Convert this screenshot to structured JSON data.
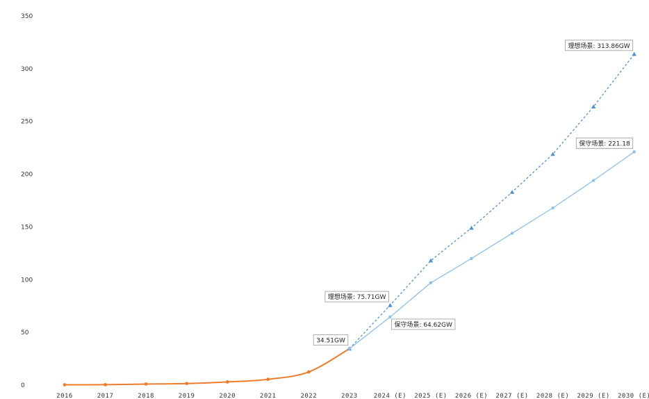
{
  "chart_data": {
    "type": "line",
    "ylim": [
      0,
      350
    ],
    "yticks": [
      0,
      50,
      100,
      150,
      200,
      250,
      300,
      350
    ],
    "categories": [
      "2016",
      "2017",
      "2018",
      "2019",
      "2020",
      "2021",
      "2022",
      "2023",
      "2024 (E)",
      "2025 (E)",
      "2026 (E)",
      "2027 (E)",
      "2028 (E)",
      "2029 (E)",
      "2030 (E)"
    ],
    "series": [
      {
        "key": "historical",
        "color": "#f07c2a",
        "dashed": false,
        "marker": "dot",
        "values": [
          0.3,
          0.4,
          1.0,
          1.5,
          3.0,
          5.5,
          12.5,
          34.51,
          null,
          null,
          null,
          null,
          null,
          null,
          null
        ]
      },
      {
        "key": "ideal",
        "color": "#4a8fd8",
        "dashed": true,
        "marker": "triangle",
        "values": [
          null,
          null,
          null,
          null,
          null,
          null,
          null,
          34.51,
          75.71,
          118,
          149,
          183,
          219,
          264,
          313.86
        ]
      },
      {
        "key": "conservative",
        "color": "#8ec0ea",
        "dashed": false,
        "marker": "dot",
        "values": [
          null,
          null,
          null,
          null,
          null,
          null,
          null,
          34.51,
          64.62,
          97,
          120,
          144,
          168,
          194,
          221.18
        ]
      }
    ],
    "annotations": [
      {
        "text": "34.51GW",
        "category": "2023",
        "value": 34.51,
        "anchor": "above-left"
      },
      {
        "text": "理想场景: 75.71GW",
        "category": "2024 (E)",
        "value": 75.71,
        "anchor": "above-left"
      },
      {
        "text": "保守场景: 64.62GW",
        "category": "2024 (E)",
        "value": 64.62,
        "anchor": "below-right"
      },
      {
        "text": "理想场景: 313.86GW",
        "category": "2030 (E)",
        "value": 313.86,
        "anchor": "above-left"
      },
      {
        "text": "保守场景: 221.18",
        "category": "2030 (E)",
        "value": 221.18,
        "anchor": "above-left"
      }
    ],
    "grid": false,
    "legend": "none"
  }
}
